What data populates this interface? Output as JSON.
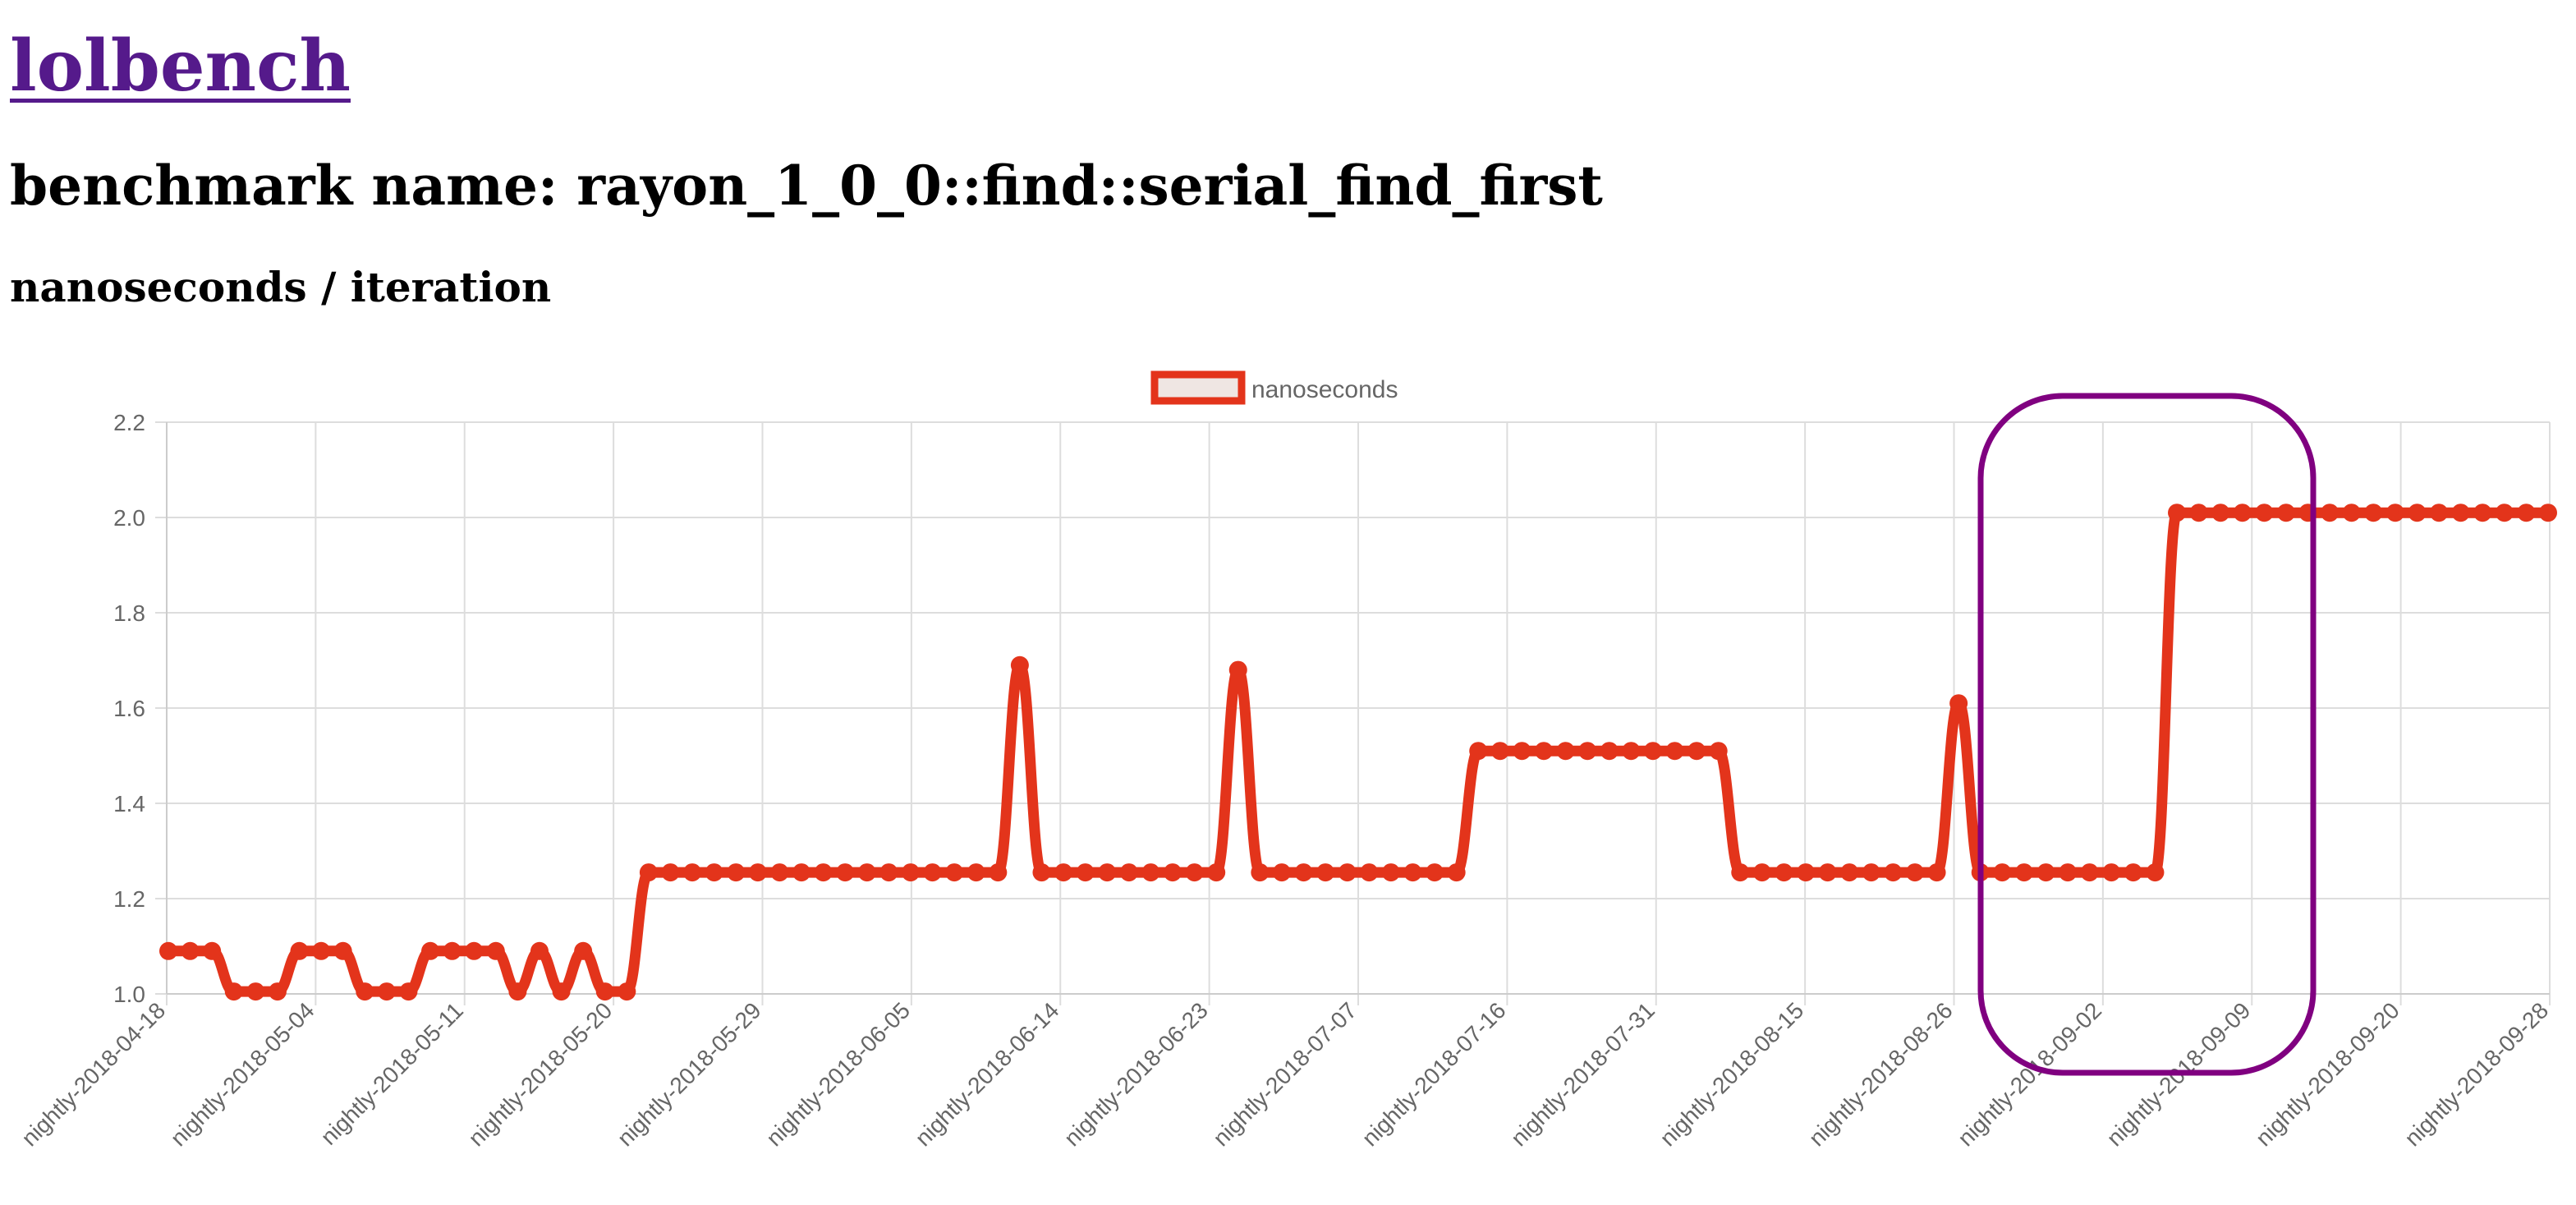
{
  "header": {
    "site_title": "lolbench",
    "benchmark_title": "benchmark name: rayon_1_0_0::find::serial_find_first",
    "unit_title": "nanoseconds / iteration"
  },
  "colors": {
    "link": "#551a8b",
    "line": "#e3341b",
    "highlight": "#800080",
    "grid": "#dddddd",
    "tick_text": "#666666"
  },
  "chart_data": {
    "type": "line",
    "title": "",
    "xlabel": "",
    "ylabel": "",
    "ylim": [
      1.0,
      2.2
    ],
    "yticks": [
      "1.0",
      "1.2",
      "1.4",
      "1.6",
      "1.8",
      "2.0",
      "2.2"
    ],
    "grid": true,
    "legend_position": "top-center",
    "x_tick_labels": [
      "nightly-2018-04-18",
      "nightly-2018-05-04",
      "nightly-2018-05-11",
      "nightly-2018-05-20",
      "nightly-2018-05-29",
      "nightly-2018-06-05",
      "nightly-2018-06-14",
      "nightly-2018-06-23",
      "nightly-2018-07-07",
      "nightly-2018-07-16",
      "nightly-2018-07-31",
      "nightly-2018-08-15",
      "nightly-2018-08-26",
      "nightly-2018-09-02",
      "nightly-2018-09-09",
      "nightly-2018-09-20",
      "nightly-2018-09-28"
    ],
    "series": [
      {
        "name": "nanoseconds",
        "values": [
          1.09,
          1.09,
          1.09,
          1.005,
          1.005,
          1.005,
          1.09,
          1.09,
          1.09,
          1.005,
          1.005,
          1.005,
          1.09,
          1.09,
          1.09,
          1.09,
          1.005,
          1.09,
          1.005,
          1.09,
          1.005,
          1.005,
          1.255,
          1.255,
          1.255,
          1.255,
          1.255,
          1.255,
          1.255,
          1.255,
          1.255,
          1.255,
          1.255,
          1.255,
          1.255,
          1.255,
          1.255,
          1.255,
          1.255,
          1.69,
          1.255,
          1.255,
          1.255,
          1.255,
          1.255,
          1.255,
          1.255,
          1.255,
          1.255,
          1.68,
          1.255,
          1.255,
          1.255,
          1.255,
          1.255,
          1.255,
          1.255,
          1.255,
          1.255,
          1.255,
          1.51,
          1.51,
          1.51,
          1.51,
          1.51,
          1.51,
          1.51,
          1.51,
          1.51,
          1.51,
          1.51,
          1.51,
          1.255,
          1.255,
          1.255,
          1.255,
          1.255,
          1.255,
          1.255,
          1.255,
          1.255,
          1.255,
          1.61,
          1.255,
          1.255,
          1.255,
          1.255,
          1.255,
          1.255,
          1.255,
          1.255,
          1.255,
          2.01,
          2.01,
          2.01,
          2.01,
          2.01,
          2.01,
          2.01,
          2.01,
          2.01,
          2.01,
          2.01,
          2.01,
          2.01,
          2.01,
          2.01,
          2.01,
          2.01,
          2.01
        ]
      }
    ],
    "highlighted_range": [
      "nightly-2018-09-02",
      "nightly-2018-09-09"
    ]
  }
}
